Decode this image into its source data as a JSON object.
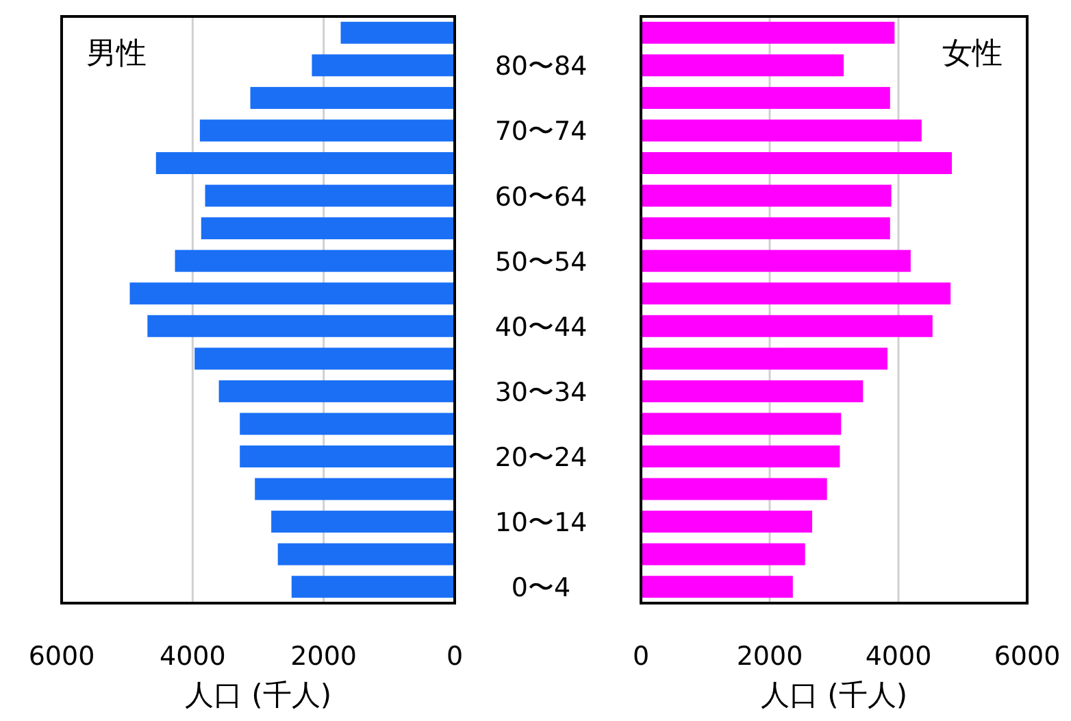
{
  "chart_data": [
    {
      "type": "bar",
      "orientation": "horizontal",
      "title": "男性",
      "xlabel": "人口 (千人)",
      "values": [
        1740,
        2180,
        3120,
        3890,
        4560,
        3810,
        3870,
        4270,
        4960,
        4690,
        3970,
        3600,
        3280,
        3280,
        3050,
        2800,
        2700,
        2490
      ],
      "color": "#1a6ff5",
      "xlim": [
        6000,
        0
      ],
      "xticks": [
        6000,
        4000,
        2000,
        0
      ],
      "grid": "x",
      "tick_labels": "x"
    },
    {
      "type": "bar",
      "orientation": "horizontal",
      "title": "女性",
      "xlabel": "人口 (千人)",
      "categories": [
        null,
        "80〜84",
        null,
        "70〜74",
        null,
        "60〜64",
        null,
        "50〜54",
        null,
        "40〜44",
        null,
        "30〜34",
        null,
        "20〜24",
        null,
        "10〜14",
        null,
        "0〜4"
      ],
      "values": [
        3940,
        3150,
        3870,
        4360,
        4830,
        3890,
        3870,
        4190,
        4810,
        4530,
        3830,
        3450,
        3110,
        3090,
        2890,
        2660,
        2550,
        2360
      ],
      "color": "#ff00ff",
      "xlim": [
        0,
        6000
      ],
      "xticks": [
        0,
        2000,
        4000,
        6000
      ],
      "grid": "x"
    }
  ]
}
